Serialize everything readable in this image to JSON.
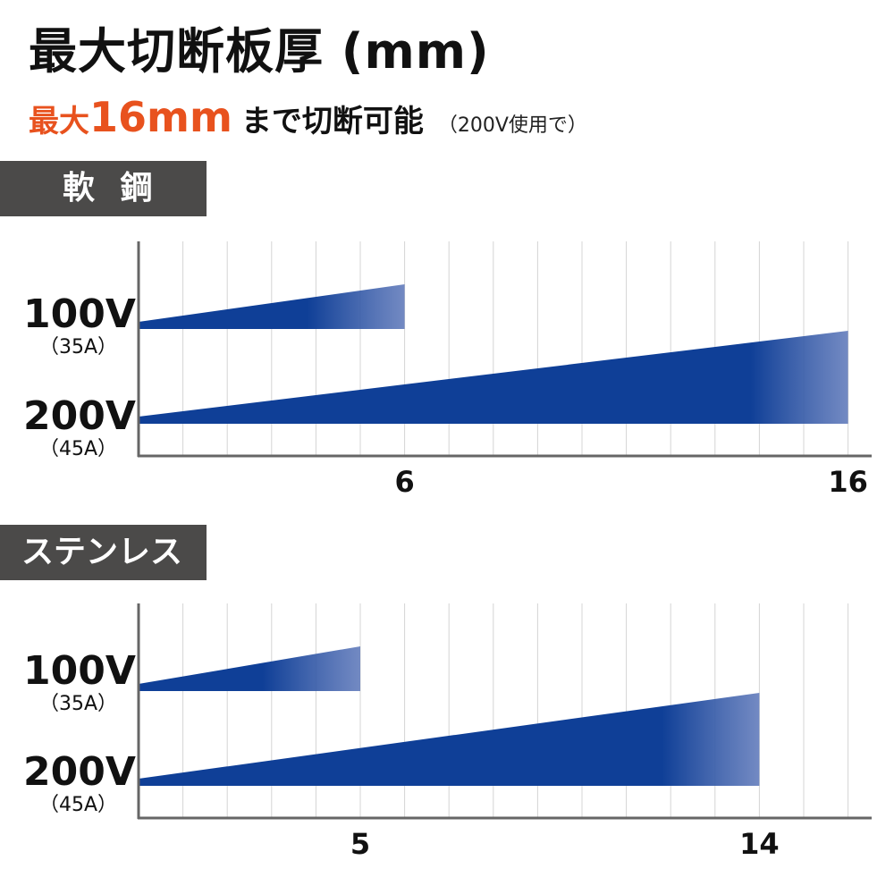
{
  "title": "最大切断板厚 (mm)",
  "subtitle": {
    "highlight_prefix": "最大",
    "highlight_value": "16mm",
    "main": "まで切断可能",
    "note": "（200V使用で）"
  },
  "colors": {
    "accent_orange": "#e8521e",
    "bar_blue": "#0f3f97",
    "label_bg": "#4b4a49",
    "grid": "#d4d4d4",
    "axis": "#666666"
  },
  "rows": {
    "r100": {
      "voltage": "100V",
      "current": "（35A）"
    },
    "r200": {
      "voltage": "200V",
      "current": "（45A）"
    }
  },
  "chart_data": [
    {
      "type": "bar",
      "section_label": "軟 鋼",
      "categories": [
        "100V（35A）",
        "200V（45A）"
      ],
      "values": [
        6,
        16
      ],
      "xlim": [
        0,
        16.5
      ],
      "grid_step": 1,
      "tick_labels": [
        "6",
        "16"
      ],
      "grid": true
    },
    {
      "type": "bar",
      "section_label": "ステンレス",
      "categories": [
        "100V（35A）",
        "200V（45A）"
      ],
      "values": [
        5,
        14
      ],
      "xlim": [
        0,
        16.5
      ],
      "grid_step": 1,
      "tick_labels": [
        "5",
        "14"
      ],
      "grid": true
    }
  ]
}
